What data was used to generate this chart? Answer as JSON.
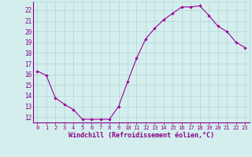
{
  "x": [
    0,
    1,
    2,
    3,
    4,
    5,
    6,
    7,
    8,
    9,
    10,
    11,
    12,
    13,
    14,
    15,
    16,
    17,
    18,
    19,
    20,
    21,
    22,
    23
  ],
  "y": [
    16.3,
    15.9,
    13.8,
    13.2,
    12.7,
    11.8,
    11.8,
    11.8,
    11.8,
    13.0,
    15.3,
    17.5,
    19.3,
    20.3,
    21.1,
    21.7,
    22.3,
    22.3,
    22.4,
    21.5,
    20.5,
    20.0,
    19.0,
    18.5
  ],
  "line_color": "#990099",
  "marker": "D",
  "marker_size": 1.8,
  "linewidth": 0.8,
  "bg_color": "#d4eeee",
  "grid_color": "#aacccc",
  "xlabel": "Windchill (Refroidissement éolien,°C)",
  "xlabel_color": "#880088",
  "tick_color": "#880088",
  "ylim": [
    11.5,
    22.8
  ],
  "yticks": [
    12,
    13,
    14,
    15,
    16,
    17,
    18,
    19,
    20,
    21,
    22
  ],
  "xtick_labels": [
    "0",
    "1",
    "2",
    "3",
    "4",
    "5",
    "6",
    "7",
    "8",
    "9",
    "10",
    "11",
    "12",
    "13",
    "14",
    "15",
    "16",
    "17",
    "18",
    "19",
    "20",
    "21",
    "22",
    "23"
  ]
}
